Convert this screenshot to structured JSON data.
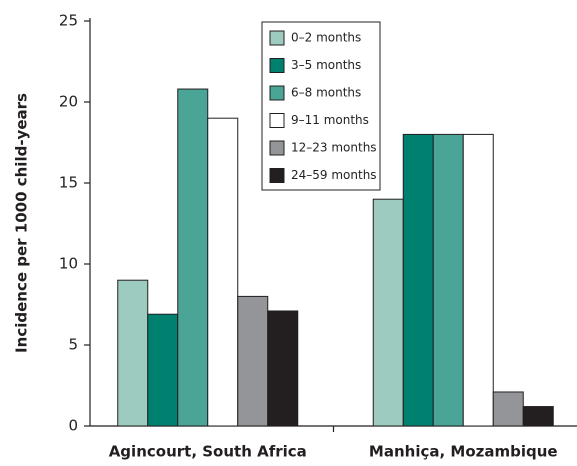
{
  "chart_data": {
    "type": "bar",
    "y_label": "Incidence per 1000 child-years",
    "categories": [
      "Agincourt, South Africa",
      "Manhiça, Mozambique"
    ],
    "series": [
      {
        "name": "0–2 months",
        "color": "#9dcbc0",
        "values": [
          9,
          14
        ]
      },
      {
        "name": "3–5 months",
        "color": "#00806e",
        "values": [
          6.9,
          18
        ]
      },
      {
        "name": "6–8 months",
        "color": "#4aa597",
        "values": [
          20.8,
          18
        ]
      },
      {
        "name": "9–11 months",
        "color": "#ffffff",
        "values": [
          19,
          18
        ]
      },
      {
        "name": "12–23 months",
        "color": "#939598",
        "values": [
          8,
          2.1
        ]
      },
      {
        "name": "24–59 months",
        "color": "#231f20",
        "values": [
          7.1,
          1.2
        ]
      }
    ],
    "ylim": [
      0,
      25
    ],
    "yticks": [
      0,
      5,
      10,
      15,
      20,
      25
    ],
    "legend": "top-center"
  }
}
